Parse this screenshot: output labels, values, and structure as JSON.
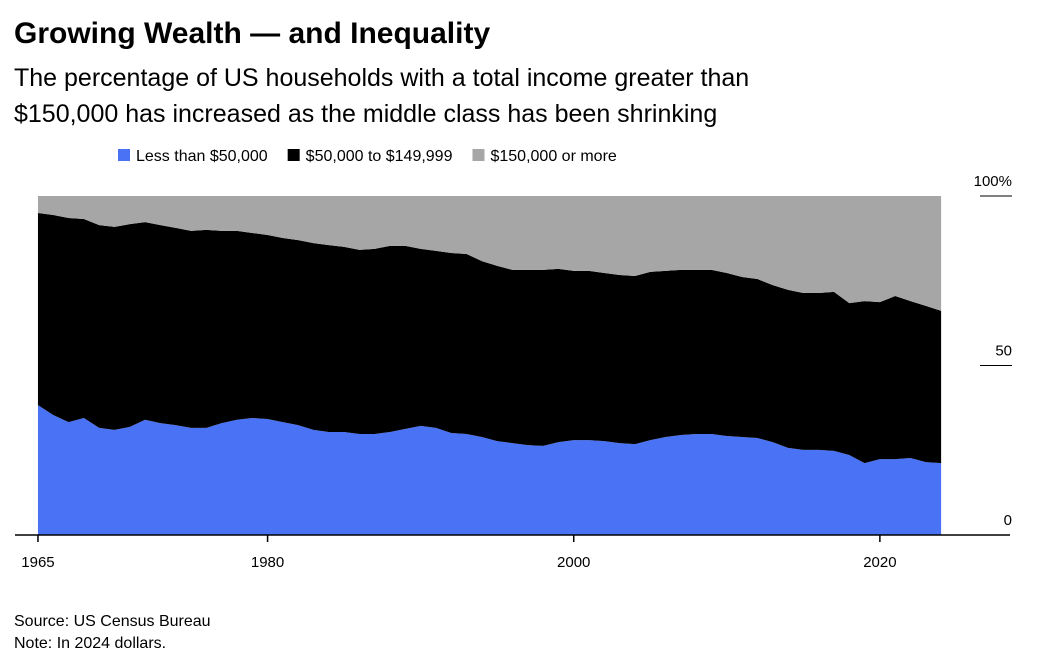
{
  "chart_data": {
    "type": "stacked_area",
    "title": "Growing Wealth — and Inequality",
    "subtitle": [
      "The percentage of US households with a total income greater than",
      "$150,000 has increased as the middle class has been shrinking"
    ],
    "source": "Source: US Census Bureau",
    "note": "Note: In 2024 dollars.",
    "x": [
      1965,
      1966,
      1967,
      1968,
      1969,
      1970,
      1971,
      1972,
      1973,
      1974,
      1975,
      1976,
      1977,
      1978,
      1979,
      1980,
      1981,
      1982,
      1983,
      1984,
      1985,
      1986,
      1987,
      1988,
      1989,
      1990,
      1991,
      1992,
      1993,
      1994,
      1995,
      1996,
      1997,
      1998,
      1999,
      2000,
      2001,
      2002,
      2003,
      2004,
      2005,
      2006,
      2007,
      2008,
      2009,
      2010,
      2011,
      2012,
      2013,
      2014,
      2015,
      2016,
      2017,
      2018,
      2019,
      2020,
      2021,
      2022,
      2023,
      2024
    ],
    "series": [
      {
        "name": "Less than $50,000",
        "color": "#4a72f5",
        "values": [
          38.3,
          35.4,
          33.3,
          34.5,
          31.6,
          31.0,
          31.9,
          34.0,
          33.0,
          32.4,
          31.6,
          31.6,
          33.0,
          34.0,
          34.5,
          34.2,
          33.3,
          32.4,
          31.0,
          30.4,
          30.4,
          29.8,
          29.8,
          30.4,
          31.3,
          32.2,
          31.6,
          30.1,
          29.8,
          28.9,
          27.7,
          27.1,
          26.5,
          26.3,
          27.4,
          28.0,
          28.0,
          27.7,
          27.1,
          26.8,
          28.0,
          28.9,
          29.5,
          29.8,
          29.8,
          29.2,
          28.9,
          28.6,
          27.4,
          25.7,
          25.1,
          25.1,
          24.8,
          23.6,
          21.2,
          22.4,
          22.4,
          22.7,
          21.5,
          21.2
        ]
      },
      {
        "name": "$50,000 to $149,999",
        "color": "#000000",
        "values": [
          56.7,
          59.0,
          60.2,
          58.7,
          59.8,
          59.9,
          59.8,
          58.3,
          58.4,
          58.2,
          58.1,
          58.4,
          56.7,
          55.7,
          54.6,
          54.3,
          54.3,
          54.6,
          55.1,
          55.1,
          54.6,
          54.3,
          54.6,
          54.9,
          54.0,
          52.2,
          52.2,
          53.1,
          53.1,
          51.9,
          51.7,
          51.1,
          51.7,
          51.9,
          51.1,
          49.9,
          49.9,
          49.6,
          49.6,
          49.6,
          49.6,
          49.0,
          48.7,
          48.4,
          48.4,
          48.1,
          47.2,
          46.9,
          46.3,
          46.6,
          46.3,
          46.3,
          46.9,
          44.8,
          47.8,
          46.3,
          48.1,
          46.3,
          46.1,
          44.9
        ]
      },
      {
        "name": "$150,000 or more",
        "color": "#a6a6a6",
        "values": [
          5.0,
          5.6,
          6.5,
          6.8,
          8.6,
          9.1,
          8.3,
          7.7,
          8.6,
          9.4,
          10.3,
          10.0,
          10.3,
          10.3,
          10.9,
          11.5,
          12.4,
          13.0,
          13.9,
          14.5,
          15.0,
          15.9,
          15.6,
          14.7,
          14.7,
          15.6,
          16.2,
          16.8,
          17.1,
          19.2,
          20.6,
          21.8,
          21.8,
          21.8,
          21.5,
          22.1,
          22.1,
          22.7,
          23.3,
          23.6,
          22.4,
          22.1,
          21.8,
          21.8,
          21.8,
          22.7,
          23.9,
          24.5,
          26.3,
          27.7,
          28.6,
          28.6,
          28.3,
          31.6,
          31.0,
          31.3,
          29.5,
          31.0,
          32.4,
          33.9
        ]
      }
    ],
    "xlim": [
      1963.5,
      2028.5
    ],
    "xticks": [
      1965,
      1980,
      2000,
      2020
    ],
    "ylim": [
      0,
      100
    ],
    "yticks": [
      0,
      50,
      {
        "value": 100,
        "label": "100%"
      }
    ]
  }
}
